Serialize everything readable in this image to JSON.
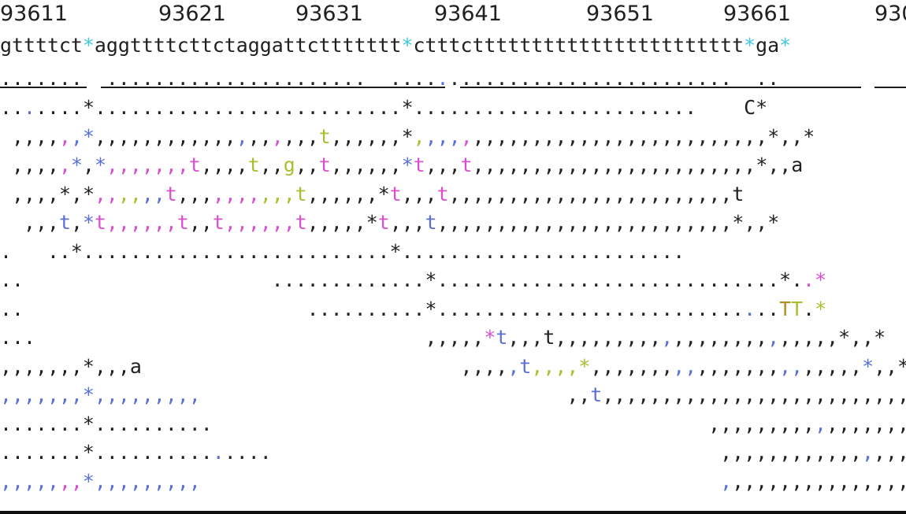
{
  "ruler": {
    "labels": [
      "93611",
      "93621",
      "93631",
      "93641",
      "93651",
      "93661",
      "930"
    ]
  },
  "reference": {
    "segments": [
      {
        "text": "gttttct",
        "color": "b"
      },
      {
        "text": "*",
        "color": "cy"
      },
      {
        "text": "aggttttcttctaggattcttttttt",
        "color": "b"
      },
      {
        "text": "*",
        "color": "cy"
      },
      {
        "text": "ctttcttttttttttttttttttttttt",
        "color": "b"
      },
      {
        "text": "*",
        "color": "cy"
      },
      {
        "text": "ga",
        "color": "b"
      },
      {
        "text": "*",
        "color": "cy"
      }
    ]
  },
  "consensus": {
    "segments": [
      {
        "text": ".......",
        "color": "b"
      },
      {
        "text": "  ",
        "color": "b"
      },
      {
        "text": "......................",
        "color": "b"
      },
      {
        "text": "  ",
        "color": "b"
      },
      {
        "text": "....",
        "color": "b"
      },
      {
        "text": ".",
        "color": "bl"
      },
      {
        "text": "........................",
        "color": "b"
      },
      {
        "text": "  ",
        "color": "b"
      },
      {
        "text": "..",
        "color": "b"
      }
    ]
  },
  "reads": [
    {
      "segments": [
        {
          "text": "..",
          "color": "b"
        },
        {
          "text": ".",
          "color": "bl"
        },
        {
          "text": "....",
          "color": "b"
        },
        {
          "text": "*",
          "color": "b"
        },
        {
          "text": "..........................",
          "color": "b"
        },
        {
          "text": "*",
          "color": "b"
        },
        {
          "text": "........................    C",
          "color": "b"
        },
        {
          "text": "*",
          "color": "b"
        }
      ]
    },
    {
      "segments": [
        {
          "text": " ,,,,",
          "color": "b"
        },
        {
          "text": ",",
          "color": "pk"
        },
        {
          "text": ",",
          "color": "bl"
        },
        {
          "text": "*",
          "color": "bl"
        },
        {
          "text": ",,,,,,,,,,,,",
          "color": "b"
        },
        {
          "text": ",",
          "color": "bl"
        },
        {
          "text": ",,",
          "color": "b"
        },
        {
          "text": ",",
          "color": "pk"
        },
        {
          "text": ",,,",
          "color": "b"
        },
        {
          "text": "t",
          "color": "yg"
        },
        {
          "text": ",,,,,,",
          "color": "b"
        },
        {
          "text": "*",
          "color": "b"
        },
        {
          "text": ",",
          "color": "yg"
        },
        {
          "text": ",,,",
          "color": "bl"
        },
        {
          "text": ",",
          "color": "pk"
        },
        {
          "text": ",,,,,,,,,,,,,,,,,,,,,,,,,",
          "color": "b"
        },
        {
          "text": "*",
          "color": "b"
        },
        {
          "text": ",,",
          "color": "b"
        },
        {
          "text": "*",
          "color": "b"
        }
      ]
    },
    {
      "segments": [
        {
          "text": " ,,,,",
          "color": "b"
        },
        {
          "text": ",",
          "color": "pk"
        },
        {
          "text": "*",
          "color": "bl"
        },
        {
          "text": ",",
          "color": "b"
        },
        {
          "text": "*",
          "color": "bl"
        },
        {
          "text": ",,,,,,,",
          "color": "pk"
        },
        {
          "text": "t",
          "color": "pk"
        },
        {
          "text": ",,,,",
          "color": "b"
        },
        {
          "text": "t",
          "color": "yg"
        },
        {
          "text": ",,",
          "color": "b"
        },
        {
          "text": "g",
          "color": "yg"
        },
        {
          "text": ",,",
          "color": "b"
        },
        {
          "text": "t",
          "color": "pk"
        },
        {
          "text": ",,,,,,",
          "color": "b"
        },
        {
          "text": "*",
          "color": "bl"
        },
        {
          "text": "t",
          "color": "pk"
        },
        {
          "text": ",,,",
          "color": "b"
        },
        {
          "text": "t",
          "color": "pk"
        },
        {
          "text": ",,,,,,,,,,,,,,,,,,,,,,,,",
          "color": "b"
        },
        {
          "text": "*",
          "color": "b"
        },
        {
          "text": ",,a",
          "color": "b"
        }
      ]
    },
    {
      "segments": [
        {
          "text": " ,,,,",
          "color": "b"
        },
        {
          "text": "*",
          "color": "b"
        },
        {
          "text": ",",
          "color": "b"
        },
        {
          "text": "*",
          "color": "b"
        },
        {
          "text": ",,",
          "color": "pk"
        },
        {
          "text": ",,",
          "color": "yg"
        },
        {
          "text": ",,",
          "color": "bl"
        },
        {
          "text": "t",
          "color": "pk"
        },
        {
          "text": ",,,",
          "color": "b"
        },
        {
          "text": ",,,,",
          "color": "pk"
        },
        {
          "text": ",,,",
          "color": "yg"
        },
        {
          "text": "t",
          "color": "yg"
        },
        {
          "text": ",,,,,,",
          "color": "b"
        },
        {
          "text": "*",
          "color": "b"
        },
        {
          "text": "t",
          "color": "pk"
        },
        {
          "text": ",,,",
          "color": "b"
        },
        {
          "text": "t",
          "color": "pk"
        },
        {
          "text": ",,,,,,,,,,,,,,,,,,,,,,,,",
          "color": "b"
        },
        {
          "text": "t",
          "color": "b"
        }
      ]
    },
    {
      "segments": [
        {
          "text": "  ,,,",
          "color": "b"
        },
        {
          "text": "t",
          "color": "bl"
        },
        {
          "text": ",",
          "color": "b"
        },
        {
          "text": "*",
          "color": "bl"
        },
        {
          "text": "t",
          "color": "pk"
        },
        {
          "text": ",,,,,,",
          "color": "pk"
        },
        {
          "text": "t",
          "color": "pk"
        },
        {
          "text": ",,",
          "color": "b"
        },
        {
          "text": "t",
          "color": "pk"
        },
        {
          "text": ",,,,,,",
          "color": "pk"
        },
        {
          "text": "t",
          "color": "pk"
        },
        {
          "text": ",,,,,",
          "color": "b"
        },
        {
          "text": "*",
          "color": "b"
        },
        {
          "text": "t",
          "color": "pk"
        },
        {
          "text": ",,,",
          "color": "b"
        },
        {
          "text": "t",
          "color": "bl"
        },
        {
          "text": ",,,,,,,,,,,,,,,,,,,,,,,,,",
          "color": "b"
        },
        {
          "text": "*",
          "color": "b"
        },
        {
          "text": ",,",
          "color": "b"
        },
        {
          "text": "*",
          "color": "b"
        }
      ]
    },
    {
      "segments": [
        {
          "text": ".   ..",
          "color": "b"
        },
        {
          "text": "*",
          "color": "b"
        },
        {
          "text": "..........................",
          "color": "b"
        },
        {
          "text": "*",
          "color": "b"
        },
        {
          "text": "........................",
          "color": "b"
        }
      ]
    },
    {
      "segments": [
        {
          "text": "..        ",
          "color": "b"
        },
        {
          "text": "             .............",
          "color": "b"
        },
        {
          "text": "*",
          "color": "b"
        },
        {
          "text": ".............................",
          "color": "b"
        },
        {
          "text": "*",
          "color": "b"
        },
        {
          "text": ".",
          "color": "b"
        },
        {
          "text": ".",
          "color": "pk"
        },
        {
          "text": "*",
          "color": "pk"
        }
      ]
    },
    {
      "segments": [
        {
          "text": "..        ",
          "color": "b"
        },
        {
          "text": "                ..........",
          "color": "b"
        },
        {
          "text": "*",
          "color": "b"
        },
        {
          "text": "..........................",
          "color": "b"
        },
        {
          "text": ".",
          "color": "bl"
        },
        {
          "text": "..",
          "color": "b"
        },
        {
          "text": "T",
          "color": "og"
        },
        {
          "text": "T",
          "color": "yg"
        },
        {
          "text": ".",
          "color": "b"
        },
        {
          "text": "*",
          "color": "yg"
        }
      ]
    },
    {
      "segments": [
        {
          "text": "...",
          "color": "b"
        },
        {
          "text": "                                 ,,,,,",
          "color": "b"
        },
        {
          "text": "*",
          "color": "pk"
        },
        {
          "text": "t",
          "color": "bl"
        },
        {
          "text": ",,,",
          "color": "b"
        },
        {
          "text": "t",
          "color": "b"
        },
        {
          "text": ",,,,,,,,,",
          "color": "b"
        },
        {
          "text": ",",
          "color": "bl"
        },
        {
          "text": ",,,,,,,,",
          "color": "b"
        },
        {
          "text": ",",
          "color": "bl"
        },
        {
          "text": ",,,,,",
          "color": "b"
        },
        {
          "text": "*",
          "color": "b"
        },
        {
          "text": ",,",
          "color": "b"
        },
        {
          "text": "*",
          "color": "b"
        }
      ]
    },
    {
      "segments": [
        {
          "text": ",,,,,,,",
          "color": "b"
        },
        {
          "text": "*",
          "color": "b"
        },
        {
          "text": ",,,a",
          "color": "b"
        },
        {
          "text": "                           ,,,,",
          "color": "b"
        },
        {
          "text": ",",
          "color": "bl"
        },
        {
          "text": "t",
          "color": "bl"
        },
        {
          "text": ",,,,",
          "color": "yg"
        },
        {
          "text": "*",
          "color": "yg"
        },
        {
          "text": ",,,,,,,",
          "color": "b"
        },
        {
          "text": ",,",
          "color": "bl"
        },
        {
          "text": ",,,,,,,",
          "color": "b"
        },
        {
          "text": ",,",
          "color": "bl"
        },
        {
          "text": ",,,,,",
          "color": "b"
        },
        {
          "text": "*",
          "color": "bl"
        },
        {
          "text": ",,",
          "color": "b"
        },
        {
          "text": "*",
          "color": "b"
        }
      ]
    },
    {
      "segments": [
        {
          "text": ",,,,,,,",
          "color": "bl"
        },
        {
          "text": "*",
          "color": "bl"
        },
        {
          "text": ",,,,,,,,,",
          "color": "bl"
        },
        {
          "text": "                               ,,",
          "color": "b"
        },
        {
          "text": "t",
          "color": "bl"
        },
        {
          "text": ",,,,,,,,,,,,,,,,,,,,,,,,,,,,",
          "color": "b"
        },
        {
          "text": "*",
          "color": "b"
        },
        {
          "text": ",,",
          "color": "b"
        },
        {
          "text": "*",
          "color": "b"
        }
      ]
    },
    {
      "segments": [
        {
          "text": ".......",
          "color": "b"
        },
        {
          "text": "*",
          "color": "b"
        },
        {
          "text": "..........",
          "color": "b"
        },
        {
          "text": "                                          ,,,,,,,,,",
          "color": "b"
        },
        {
          "text": ",",
          "color": "bl"
        },
        {
          "text": ",,,,,,,,,,",
          "color": "b"
        },
        {
          "text": "*",
          "color": "b"
        },
        {
          "text": ",,",
          "color": "b"
        },
        {
          "text": "*",
          "color": "b"
        }
      ]
    },
    {
      "segments": [
        {
          "text": ".......",
          "color": "b"
        },
        {
          "text": "*",
          "color": "b"
        },
        {
          "text": "..........",
          "color": "b"
        },
        {
          "text": ".",
          "color": "bl"
        },
        {
          "text": "....",
          "color": "b"
        },
        {
          "text": "                                      ,,,,,,,,,,,,",
          "color": "b"
        },
        {
          "text": ",",
          "color": "bl"
        },
        {
          "text": ",,,,,,",
          "color": "b"
        },
        {
          "text": "*",
          "color": "b"
        },
        {
          "text": ",,",
          "color": "b"
        },
        {
          "text": "*",
          "color": "b"
        }
      ]
    },
    {
      "segments": [
        {
          "text": ",,,,,",
          "color": "bl"
        },
        {
          "text": ",,",
          "color": "pk"
        },
        {
          "text": "*",
          "color": "bl"
        },
        {
          "text": ",,,,,,,,,",
          "color": "bl"
        },
        {
          "text": "                                            ",
          "color": "b"
        },
        {
          "text": ",",
          "color": "bl"
        },
        {
          "text": ",,,,,,,,,,,,,,,,,,",
          "color": "b"
        },
        {
          "text": "*",
          "color": "b"
        },
        {
          "text": ",,",
          "color": "b"
        },
        {
          "text": "*",
          "color": "b"
        }
      ]
    }
  ]
}
